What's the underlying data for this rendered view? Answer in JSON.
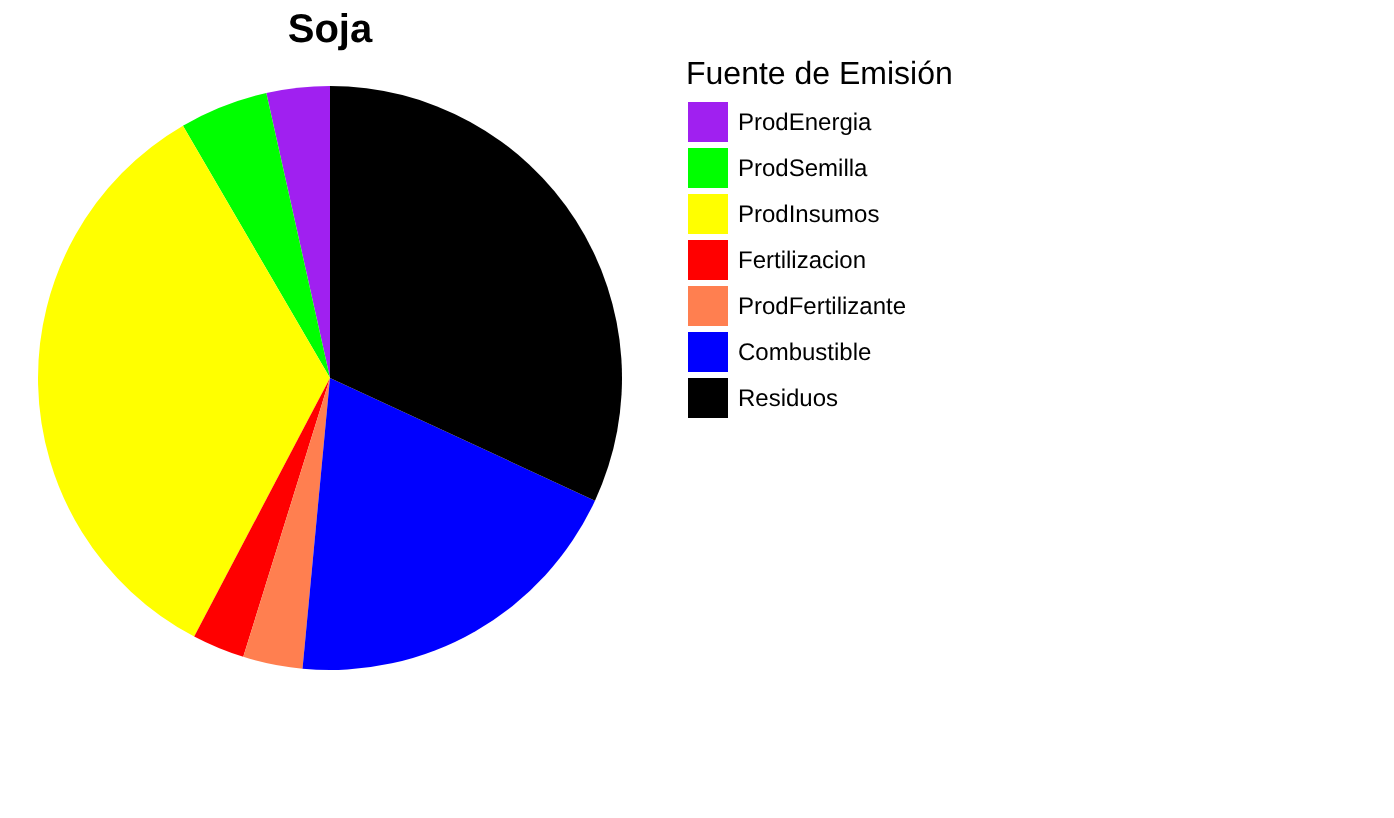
{
  "chart_data": {
    "type": "pie",
    "title": "Soja",
    "legend_title": "Fuente de Emisión",
    "legend": "right",
    "categories": [
      "ProdEnergia",
      "ProdSemilla",
      "ProdInsumos",
      "Fertilizacion",
      "ProdFertilizante",
      "Combustible",
      "Residuos"
    ],
    "values": [
      3.5,
      4.9,
      33.9,
      2.9,
      3.3,
      19.6,
      31.9
    ],
    "colors": [
      "#a020f0",
      "#00ff00",
      "#ffff00",
      "#ff0000",
      "#ff7f50",
      "#0000ff",
      "#000000"
    ]
  }
}
